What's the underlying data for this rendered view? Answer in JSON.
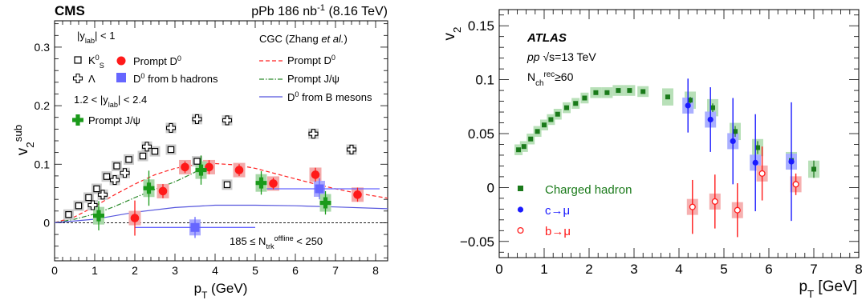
{
  "chart_data": [
    {
      "type": "scatter",
      "header_left": "CMS",
      "header_right": "pPb 186 nb",
      "header_right_sup": "-1",
      "header_right_tail": " (8.16 TeV)",
      "xlabel": "p",
      "xlabel_sub": "T",
      "xlabel_tail": " (GeV)",
      "ylabel": "v",
      "ylabel_sub": "2",
      "ylabel_sup": "sub",
      "xlim": [
        0,
        8.3
      ],
      "ylim": [
        -0.065,
        0.345
      ],
      "xticks": [
        "0",
        "1",
        "2",
        "3",
        "4",
        "5",
        "6",
        "7",
        "8"
      ],
      "yticks": [
        "0",
        "0.1",
        "0.2",
        "0.3"
      ],
      "ytick_values": [
        0,
        0.1,
        0.2,
        0.3
      ],
      "annotations": {
        "rap1_pre": "|y",
        "rap1_sub": "lab",
        "rap1_post": "| < 1",
        "rap2_pre": "1.2 < |y",
        "rap2_sub": "lab",
        "rap2_post": "| < 2.4",
        "theory_pre": "CGC (Zhang ",
        "theory_em": "et al.",
        "theory_post": ")",
        "mult_pre": "185 ≤ N",
        "mult_sup": "offline",
        "mult_sub": "trk",
        "mult_post": " < 250"
      },
      "legend": {
        "k0s": "K",
        "k0s_sup": "0",
        "k0s_sub": "S",
        "lambda": "Λ",
        "prompt_d0": "Prompt D",
        "prompt_d0_sup": "0",
        "d0_from_b": "D",
        "d0_from_b_sup": "0",
        "d0_from_b_tail": " from b hadrons",
        "prompt_jpsi": "Prompt J/ψ",
        "cgc_d0": "Prompt D",
        "cgc_d0_sup": "0",
        "cgc_jpsi": "Prompt J/ψ",
        "cgc_bd0": "D",
        "cgc_bd0_sup": "0",
        "cgc_bd0_tail": " from B mesons"
      },
      "colors": {
        "prompt_d0": "#ff1a1a",
        "d0_from_b": "#6666ff",
        "prompt_jpsi": "#1a9a1a",
        "cgc_d0": "#ff2020",
        "cgc_jpsi": "#2a8a2a",
        "cgc_bd0": "#5555dd",
        "box_gray": "#cccccc",
        "box_red": "#f4a9a9",
        "box_green": "#a8d8a8",
        "box_blue": "#aaaaff"
      },
      "series": [
        {
          "name": "K0S",
          "marker": "open-square",
          "x": [
            0.35,
            0.6,
            0.85,
            1.05,
            1.3,
            1.55,
            1.85,
            2.2,
            2.5,
            2.9,
            3.55,
            4.3
          ],
          "y": [
            0.014,
            0.029,
            0.043,
            0.058,
            0.079,
            0.097,
            0.108,
            0.114,
            0.122,
            0.125,
            0.105,
            0.065
          ]
        },
        {
          "name": "Lambda",
          "marker": "open-cross",
          "x": [
            0.95,
            1.2,
            1.5,
            1.75,
            2.3,
            2.9,
            3.55,
            4.3
          ],
          "y": [
            0.03,
            0.048,
            0.073,
            0.085,
            0.13,
            0.162,
            0.177,
            0.175
          ]
        },
        {
          "name": "Lambda (high pT)",
          "marker": "open-cross",
          "x": [
            6.45,
            7.4
          ],
          "y": [
            0.152,
            0.125
          ]
        },
        {
          "name": "Prompt D0",
          "marker": "filled-circle",
          "x": [
            2.0,
            2.7,
            3.25,
            3.85,
            4.6,
            5.45,
            6.5,
            7.55
          ],
          "y": [
            0.008,
            0.054,
            0.095,
            0.095,
            0.09,
            0.067,
            0.082,
            0.048
          ],
          "yerr": [
            0.03,
            0.012,
            0.01,
            0.012,
            0.01,
            0.01,
            0.012,
            0.012
          ]
        },
        {
          "name": "D0 from b hadrons",
          "marker": "filled-square",
          "x": [
            3.5,
            6.6
          ],
          "y": [
            -0.008,
            0.058
          ],
          "xerr": [
            1.5,
            1.5
          ],
          "yerr": [
            0.018,
            0.018
          ]
        },
        {
          "name": "Prompt J/psi",
          "marker": "filled-cross",
          "x": [
            1.1,
            2.35,
            3.65,
            5.15,
            6.75
          ],
          "y": [
            0.012,
            0.059,
            0.09,
            0.068,
            0.034
          ],
          "yerr": [
            0.025,
            0.03,
            0.025,
            0.02,
            0.02
          ]
        }
      ],
      "theory_curves": [
        {
          "name": "CGC Prompt D0",
          "style": "dashed",
          "x": [
            0.0,
            0.5,
            1.0,
            1.5,
            2.0,
            2.5,
            3.0,
            3.5,
            4.0,
            4.5,
            5.0,
            5.5,
            6.0,
            6.5,
            7.0,
            7.5,
            8.3
          ],
          "y": [
            0.0,
            0.01,
            0.028,
            0.048,
            0.066,
            0.082,
            0.093,
            0.099,
            0.101,
            0.099,
            0.093,
            0.084,
            0.075,
            0.066,
            0.058,
            0.051,
            0.042
          ]
        },
        {
          "name": "CGC Prompt J/psi",
          "style": "dashdot",
          "x": [
            0.0,
            0.5,
            1.0,
            1.5,
            2.0,
            2.5,
            3.0,
            3.4,
            3.6
          ],
          "y": [
            0.0,
            0.006,
            0.015,
            0.028,
            0.043,
            0.057,
            0.07,
            0.083,
            0.09
          ]
        },
        {
          "name": "CGC D0 from B mesons",
          "style": "solid",
          "x": [
            0.0,
            1.0,
            2.0,
            3.0,
            4.0,
            5.0,
            6.0,
            7.0,
            8.3
          ],
          "y": [
            0.0,
            0.006,
            0.018,
            0.026,
            0.03,
            0.03,
            0.029,
            0.027,
            0.024
          ]
        }
      ]
    },
    {
      "type": "scatter",
      "header": "ATLAS",
      "energy_pre": "pp",
      "energy_post": "√s=13 TeV",
      "mult_label": "N",
      "mult_sup": "rec",
      "mult_sub": "ch",
      "mult_post": "≥60",
      "xlabel": "p",
      "xlabel_sub": "T",
      "xlabel_tail": " [GeV]",
      "ylabel": "v",
      "ylabel_sub": "2",
      "xlim": [
        0,
        8
      ],
      "ylim": [
        -0.065,
        0.165
      ],
      "xticks": [
        "0",
        "1",
        "2",
        "3",
        "4",
        "5",
        "6",
        "7",
        "8"
      ],
      "yticks": [
        "−0.05",
        "0",
        "0.05",
        "0.1",
        "0.15"
      ],
      "ytick_values": [
        -0.05,
        0,
        0.05,
        0.1,
        0.15
      ],
      "legend": {
        "charged": "Charged hadron",
        "c_mu": "c→μ",
        "b_mu": "b→μ"
      },
      "colors": {
        "charged": "#1a7a1a",
        "c_mu": "#1a1aff",
        "b_mu": "#ff1a1a",
        "box_green": "#b8e0b8",
        "box_blue": "#aab0ff",
        "box_red": "#f6b0b0"
      },
      "series": [
        {
          "name": "Charged hadron",
          "marker": "filled-square",
          "x": [
            0.43,
            0.55,
            0.7,
            0.85,
            1.0,
            1.15,
            1.3,
            1.5,
            1.7,
            1.9,
            2.15,
            2.4,
            2.65,
            2.9,
            3.2,
            3.75,
            4.25,
            4.75,
            5.25,
            5.75,
            6.5,
            7.0
          ],
          "y": [
            0.035,
            0.038,
            0.045,
            0.052,
            0.058,
            0.063,
            0.068,
            0.074,
            0.078,
            0.083,
            0.088,
            0.088,
            0.09,
            0.09,
            0.089,
            0.084,
            0.081,
            0.074,
            0.052,
            0.037,
            0.025,
            0.017
          ],
          "yerr": [
            0.001,
            0.001,
            0.001,
            0.001,
            0.001,
            0.001,
            0.001,
            0.001,
            0.001,
            0.001,
            0.001,
            0.001,
            0.001,
            0.001,
            0.001,
            0.002,
            0.003,
            0.004,
            0.005,
            0.006,
            0.008,
            0.008
          ]
        },
        {
          "name": "c→μ",
          "marker": "filled-circle",
          "x": [
            4.2,
            4.7,
            5.2,
            5.7,
            6.5
          ],
          "y": [
            0.076,
            0.063,
            0.043,
            0.023,
            0.024
          ],
          "yerr": [
            0.025,
            0.03,
            0.04,
            0.045,
            0.055
          ]
        },
        {
          "name": "b→μ",
          "marker": "open-circle",
          "x": [
            4.3,
            4.8,
            5.3,
            5.85,
            6.6
          ],
          "y": [
            -0.018,
            -0.013,
            -0.021,
            0.013,
            0.003
          ],
          "yerr": [
            0.025,
            0.025,
            0.025,
            0.025,
            0.01
          ]
        }
      ]
    }
  ]
}
